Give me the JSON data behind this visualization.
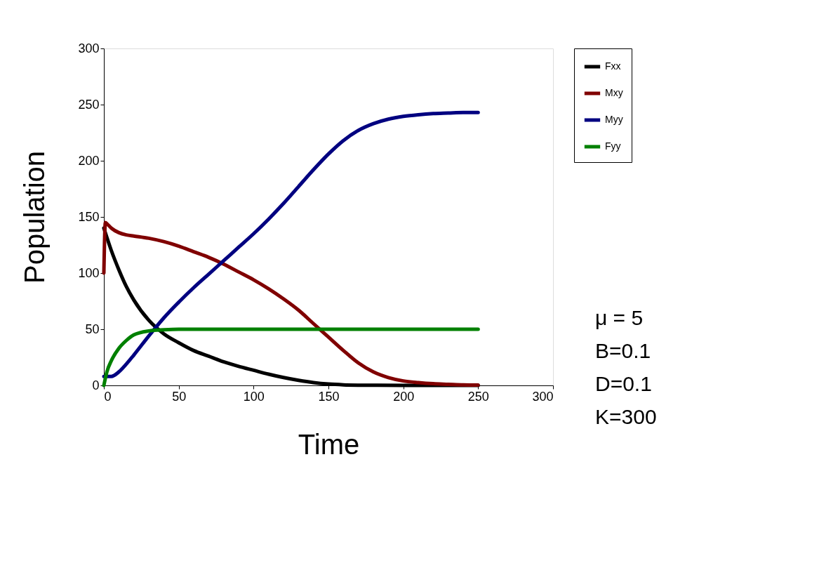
{
  "chart_data": {
    "type": "line",
    "xlabel": "Time",
    "ylabel": "Population",
    "xlim": [
      0,
      300
    ],
    "xticks": [
      0,
      50,
      100,
      150,
      200,
      250,
      300
    ],
    "ylim": [
      0,
      300
    ],
    "yticks": [
      0,
      50,
      100,
      150,
      200,
      250,
      300
    ],
    "grid": false,
    "legend": "right",
    "marker": "none",
    "line_style": "solid",
    "annotations": [
      "μ = 5",
      "B=0.1",
      "D=0.1",
      "K=300"
    ],
    "series": [
      {
        "name": "Fxx",
        "color": "#000000",
        "x": [
          0,
          5,
          10,
          15,
          20,
          30,
          40,
          50,
          60,
          70,
          80,
          90,
          100,
          110,
          120,
          130,
          140,
          150,
          160,
          170,
          180,
          200,
          250
        ],
        "values": [
          140,
          120,
          103,
          88,
          76,
          58,
          46,
          38,
          31,
          26,
          21,
          17,
          13.5,
          10,
          7,
          4.5,
          2.5,
          1.2,
          0.5,
          0.2,
          0.1,
          0,
          0
        ]
      },
      {
        "name": "Mxy",
        "color": "#800000",
        "x": [
          0,
          1,
          2,
          5,
          10,
          15,
          20,
          30,
          40,
          50,
          60,
          70,
          80,
          90,
          100,
          110,
          120,
          130,
          140,
          150,
          160,
          170,
          180,
          190,
          200,
          210,
          220,
          230,
          240,
          250
        ],
        "values": [
          100,
          145,
          144,
          140,
          136,
          134,
          133,
          131,
          128,
          124,
          119,
          114,
          108,
          101,
          94,
          86,
          77,
          67,
          55,
          43,
          31,
          20,
          12,
          7,
          4,
          2.5,
          1.5,
          1,
          0.5,
          0.3
        ]
      },
      {
        "name": "Myy",
        "color": "#000080",
        "x": [
          0,
          5,
          10,
          15,
          20,
          30,
          40,
          50,
          60,
          70,
          80,
          90,
          100,
          110,
          120,
          130,
          140,
          150,
          160,
          170,
          180,
          190,
          200,
          210,
          220,
          230,
          240,
          250
        ],
        "values": [
          8,
          8,
          12,
          19,
          27,
          44,
          60,
          74,
          87,
          99,
          111,
          123,
          135,
          148,
          162,
          177,
          192,
          206,
          218,
          227,
          233,
          237,
          239.5,
          241,
          242,
          242.5,
          243,
          243
        ]
      },
      {
        "name": "Fyy",
        "color": "#008000",
        "x": [
          0,
          2,
          5,
          10,
          15,
          20,
          30,
          40,
          50,
          100,
          150,
          200,
          250
        ],
        "values": [
          0,
          12,
          22,
          33,
          40,
          45,
          48.5,
          49.5,
          50,
          50,
          50,
          50,
          50
        ]
      }
    ]
  }
}
